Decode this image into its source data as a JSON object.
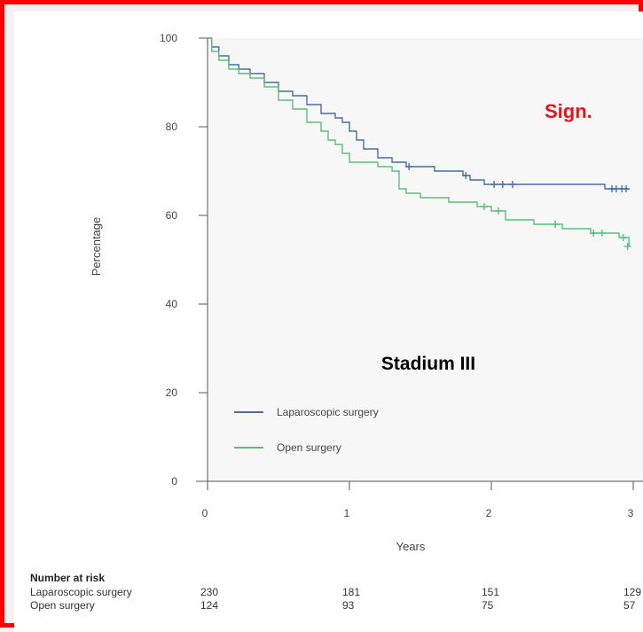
{
  "chart_data": {
    "type": "line",
    "title": "Stadium III",
    "annotation": "Sign.",
    "xlabel": "Years",
    "ylabel": "Percentage",
    "xlim": [
      0,
      3
    ],
    "ylim": [
      0,
      100
    ],
    "x_ticks": [
      "0",
      "1",
      "2",
      "3"
    ],
    "y_ticks": [
      "0",
      "20",
      "40",
      "60",
      "80",
      "100"
    ],
    "legend_position": "bottom-left",
    "series": [
      {
        "name": "Laparoscopic surgery",
        "color": "#4a6f9e",
        "x": [
          0,
          0.03,
          0.08,
          0.15,
          0.22,
          0.3,
          0.4,
          0.5,
          0.6,
          0.7,
          0.8,
          0.9,
          0.95,
          1.0,
          1.05,
          1.1,
          1.2,
          1.3,
          1.4,
          1.5,
          1.6,
          1.7,
          1.8,
          1.85,
          1.9,
          1.95,
          2.0,
          2.1,
          2.2,
          2.3,
          2.5,
          2.7,
          2.8,
          2.9,
          2.97
        ],
        "y": [
          100,
          98,
          96,
          94,
          93,
          92,
          90,
          88,
          87,
          85,
          83,
          82,
          81,
          79,
          77,
          75,
          73,
          72,
          71,
          71,
          70,
          70,
          69,
          68,
          68,
          67,
          67,
          67,
          67,
          67,
          67,
          67,
          66,
          66,
          66
        ],
        "censor_x": [
          1.42,
          1.82,
          2.02,
          2.08,
          2.15,
          2.85,
          2.88,
          2.92,
          2.95
        ],
        "censor_y": [
          71,
          69,
          67,
          67,
          67,
          66,
          66,
          66,
          66
        ]
      },
      {
        "name": "Open surgery",
        "color": "#5dbf78",
        "x": [
          0,
          0.03,
          0.08,
          0.15,
          0.22,
          0.3,
          0.4,
          0.5,
          0.6,
          0.7,
          0.8,
          0.85,
          0.9,
          0.95,
          1.0,
          1.1,
          1.2,
          1.3,
          1.35,
          1.4,
          1.5,
          1.6,
          1.7,
          1.8,
          1.9,
          2.0,
          2.1,
          2.3,
          2.5,
          2.6,
          2.7,
          2.8,
          2.9,
          2.97
        ],
        "y": [
          100,
          97,
          95,
          93,
          92,
          91,
          89,
          86,
          84,
          81,
          79,
          77,
          76,
          74,
          72,
          72,
          71,
          70,
          66,
          65,
          64,
          64,
          63,
          63,
          62,
          61,
          59,
          58,
          57,
          57,
          56,
          56,
          55,
          53
        ],
        "censor_x": [
          1.95,
          2.05,
          2.45,
          2.72,
          2.78,
          2.93,
          2.96
        ],
        "censor_y": [
          62,
          61,
          58,
          56,
          56,
          55,
          53
        ]
      }
    ]
  },
  "risk_table": {
    "title": "Number at risk",
    "rows": [
      {
        "label": "Laparoscopic surgery",
        "values": [
          "230",
          "181",
          "151",
          "129"
        ]
      },
      {
        "label": "Open surgery",
        "values": [
          "124",
          "93",
          "75",
          "57"
        ]
      }
    ]
  }
}
